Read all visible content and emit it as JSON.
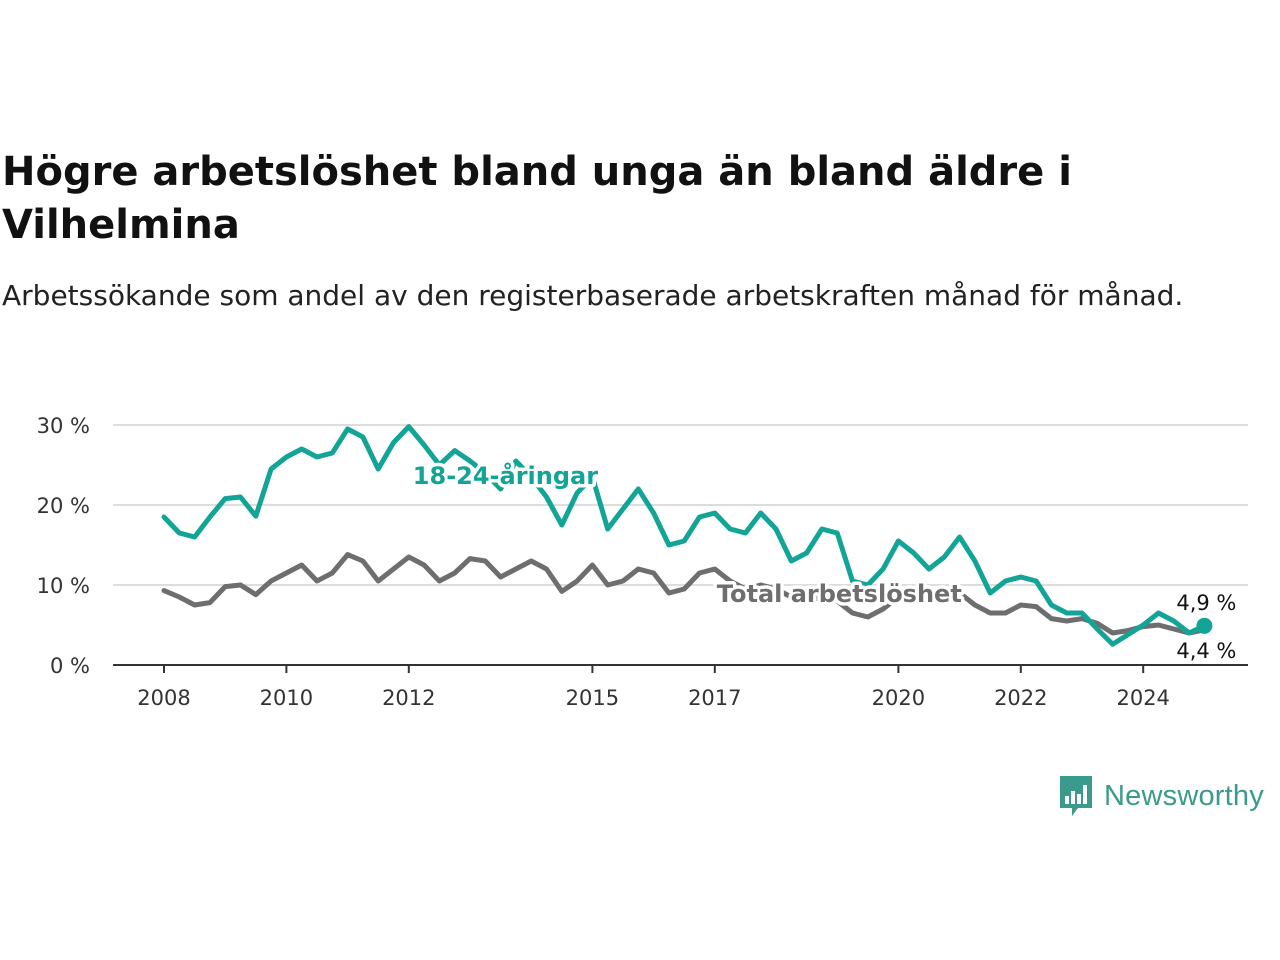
{
  "title": "Högre arbetslöshet bland unga än bland äldre i Vilhelmina",
  "subtitle": "Arbetssökande som andel av den registerbaserade arbetskraften månad för månad.",
  "brand": {
    "name": "Newsworthy",
    "color": "#3a9a8c",
    "icon": "bar-chart-speech-bubble-icon"
  },
  "colors": {
    "youth": "#12a497",
    "total": "#6e6e70",
    "grid": "#dddddd",
    "axis": "#333333"
  },
  "chart_data": {
    "type": "line",
    "x_ticks": [
      "2008",
      "2010",
      "2012",
      "2015",
      "2017",
      "2020",
      "2022",
      "2024"
    ],
    "y_ticks": [
      "0 %",
      "10 %",
      "20 %",
      "30 %"
    ],
    "ylim": [
      0,
      30
    ],
    "grid": true,
    "series": [
      {
        "name": "18-24-åringar",
        "color": "#12a497",
        "end_label": "4,9 %",
        "points": [
          [
            "2008-01",
            18.5
          ],
          [
            "2008-04",
            16.5
          ],
          [
            "2008-07",
            16.0
          ],
          [
            "2008-10",
            18.5
          ],
          [
            "2009-01",
            20.8
          ],
          [
            "2009-04",
            21.0
          ],
          [
            "2009-07",
            18.6
          ],
          [
            "2009-10",
            24.5
          ],
          [
            "2010-01",
            26.0
          ],
          [
            "2010-04",
            27.0
          ],
          [
            "2010-07",
            26.0
          ],
          [
            "2010-10",
            26.5
          ],
          [
            "2011-01",
            29.5
          ],
          [
            "2011-04",
            28.5
          ],
          [
            "2011-07",
            24.5
          ],
          [
            "2011-10",
            27.8
          ],
          [
            "2012-01",
            29.8
          ],
          [
            "2012-04",
            27.5
          ],
          [
            "2012-07",
            25.0
          ],
          [
            "2012-10",
            26.8
          ],
          [
            "2013-01",
            25.5
          ],
          [
            "2013-04",
            24.0
          ],
          [
            "2013-07",
            22.0
          ],
          [
            "2013-10",
            25.5
          ],
          [
            "2014-01",
            23.5
          ],
          [
            "2014-04",
            21.0
          ],
          [
            "2014-07",
            17.5
          ],
          [
            "2014-10",
            21.5
          ],
          [
            "2015-01",
            23.5
          ],
          [
            "2015-04",
            17.0
          ],
          [
            "2015-07",
            19.5
          ],
          [
            "2015-10",
            22.0
          ],
          [
            "2016-01",
            19.0
          ],
          [
            "2016-04",
            15.0
          ],
          [
            "2016-07",
            15.5
          ],
          [
            "2016-10",
            18.5
          ],
          [
            "2017-01",
            19.0
          ],
          [
            "2017-04",
            17.0
          ],
          [
            "2017-07",
            16.5
          ],
          [
            "2017-10",
            19.0
          ],
          [
            "2018-01",
            17.0
          ],
          [
            "2018-04",
            13.0
          ],
          [
            "2018-07",
            14.0
          ],
          [
            "2018-10",
            17.0
          ],
          [
            "2019-01",
            16.5
          ],
          [
            "2019-04",
            10.5
          ],
          [
            "2019-07",
            10.0
          ],
          [
            "2019-10",
            12.0
          ],
          [
            "2020-01",
            15.5
          ],
          [
            "2020-04",
            14.0
          ],
          [
            "2020-07",
            12.0
          ],
          [
            "2020-10",
            13.5
          ],
          [
            "2021-01",
            16.0
          ],
          [
            "2021-04",
            13.0
          ],
          [
            "2021-07",
            9.0
          ],
          [
            "2021-10",
            10.5
          ],
          [
            "2022-01",
            11.0
          ],
          [
            "2022-04",
            10.5
          ],
          [
            "2022-07",
            7.5
          ],
          [
            "2022-10",
            6.5
          ],
          [
            "2023-01",
            6.5
          ],
          [
            "2023-04",
            4.5
          ],
          [
            "2023-07",
            2.6
          ],
          [
            "2023-10",
            3.8
          ],
          [
            "2024-01",
            5.0
          ],
          [
            "2024-04",
            6.5
          ],
          [
            "2024-07",
            5.5
          ],
          [
            "2024-10",
            4.0
          ],
          [
            "2025-01",
            4.9
          ]
        ]
      },
      {
        "name": "Total arbetslöshet",
        "color": "#6e6e70",
        "end_label": "4,4 %",
        "points": [
          [
            "2008-01",
            9.3
          ],
          [
            "2008-04",
            8.5
          ],
          [
            "2008-07",
            7.5
          ],
          [
            "2008-10",
            7.8
          ],
          [
            "2009-01",
            9.8
          ],
          [
            "2009-04",
            10.0
          ],
          [
            "2009-07",
            8.8
          ],
          [
            "2009-10",
            10.5
          ],
          [
            "2010-01",
            11.5
          ],
          [
            "2010-04",
            12.5
          ],
          [
            "2010-07",
            10.5
          ],
          [
            "2010-10",
            11.5
          ],
          [
            "2011-01",
            13.8
          ],
          [
            "2011-04",
            13.0
          ],
          [
            "2011-07",
            10.5
          ],
          [
            "2011-10",
            12.0
          ],
          [
            "2012-01",
            13.5
          ],
          [
            "2012-04",
            12.5
          ],
          [
            "2012-07",
            10.5
          ],
          [
            "2012-10",
            11.5
          ],
          [
            "2013-01",
            13.3
          ],
          [
            "2013-04",
            13.0
          ],
          [
            "2013-07",
            11.0
          ],
          [
            "2013-10",
            12.0
          ],
          [
            "2014-01",
            13.0
          ],
          [
            "2014-04",
            12.0
          ],
          [
            "2014-07",
            9.2
          ],
          [
            "2014-10",
            10.5
          ],
          [
            "2015-01",
            12.5
          ],
          [
            "2015-04",
            10.0
          ],
          [
            "2015-07",
            10.5
          ],
          [
            "2015-10",
            12.0
          ],
          [
            "2016-01",
            11.5
          ],
          [
            "2016-04",
            9.0
          ],
          [
            "2016-07",
            9.5
          ],
          [
            "2016-10",
            11.5
          ],
          [
            "2017-01",
            12.0
          ],
          [
            "2017-04",
            10.5
          ],
          [
            "2017-07",
            9.5
          ],
          [
            "2017-10",
            10.0
          ],
          [
            "2018-01",
            9.5
          ],
          [
            "2018-04",
            8.5
          ],
          [
            "2018-07",
            8.0
          ],
          [
            "2018-10",
            8.5
          ],
          [
            "2019-01",
            8.0
          ],
          [
            "2019-04",
            6.5
          ],
          [
            "2019-07",
            6.0
          ],
          [
            "2019-10",
            7.0
          ],
          [
            "2020-01",
            8.5
          ],
          [
            "2020-04",
            8.8
          ],
          [
            "2020-07",
            8.0
          ],
          [
            "2020-10",
            8.0
          ],
          [
            "2021-01",
            9.0
          ],
          [
            "2021-04",
            7.5
          ],
          [
            "2021-07",
            6.5
          ],
          [
            "2021-10",
            6.5
          ],
          [
            "2022-01",
            7.5
          ],
          [
            "2022-04",
            7.3
          ],
          [
            "2022-07",
            5.8
          ],
          [
            "2022-10",
            5.5
          ],
          [
            "2023-01",
            5.8
          ],
          [
            "2023-04",
            5.2
          ],
          [
            "2023-07",
            4.0
          ],
          [
            "2023-10",
            4.3
          ],
          [
            "2024-01",
            4.8
          ],
          [
            "2024-04",
            5.0
          ],
          [
            "2024-07",
            4.5
          ],
          [
            "2024-10",
            4.0
          ],
          [
            "2025-01",
            4.4
          ]
        ]
      }
    ]
  }
}
